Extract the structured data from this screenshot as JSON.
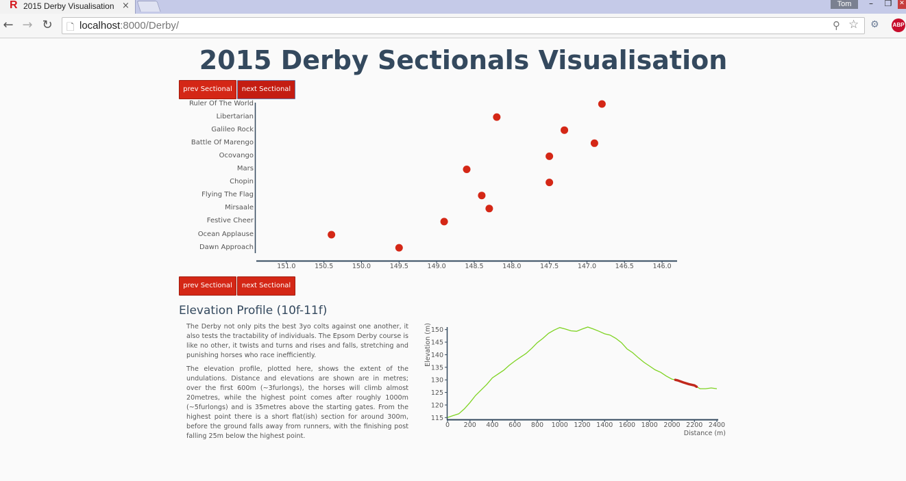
{
  "browser": {
    "tab_title": "2015 Derby Visualisation",
    "tab_favicon": "R",
    "close_glyph": "×",
    "user_name": "Tom",
    "url_host": "localhost",
    "url_path": ":8000/Derby/",
    "icons": {
      "back": "back-arrow-icon",
      "forward": "forward-arrow-icon",
      "reload": "reload-icon",
      "page": "page-icon",
      "search": "search-icon",
      "star": "star-icon",
      "extension": "extension-icon",
      "adblock": "adblock-icon"
    },
    "adblock_label": "ABP",
    "window_buttons": {
      "minimize": "–",
      "maximize": "❐",
      "close": "✕"
    }
  },
  "page": {
    "title": "2015 Derby Sectionals Visualisation",
    "prev_label": "prev Sectional",
    "next_label": "next Sectional"
  },
  "elevation": {
    "heading": "Elevation Profile (10f-11f)",
    "paragraph1": "The Derby not only pits the best 3yo colts against one another, it also tests the tractability of individuals. The Epsom Derby course is like no other, it twists and turns and rises and falls, stretching and punishing horses who race inefficiently.",
    "paragraph2": "The elevation profile, plotted here, shows the extent of the undulations. Distance and elevations are shown are in metres; over the first 600m (~3furlongs), the horses will climb almost 20metres, while the highest point comes after roughly 1000m (~5furlongs) and is 35metres above the starting gates. From the highest point there is a short flat(ish) section for around 300m, before the ground falls away from runners, with the finishing post falling 25m below the highest point."
  },
  "colors": {
    "accent": "#d42716",
    "title": "#34495e",
    "axis": "#34495e",
    "line": "#7ed321",
    "highlight": "#c0281c"
  },
  "chart_data": [
    {
      "type": "scatter",
      "name": "sectional-times",
      "categories": [
        "Ruler Of The World",
        "Libertarian",
        "Galileo Rock",
        "Battle Of Marengo",
        "Ocovango",
        "Mars",
        "Chopin",
        "Flying The Flag",
        "Mirsaale",
        "Festive Cheer",
        "Ocean Applause",
        "Dawn Approach"
      ],
      "values": [
        146.8,
        148.2,
        147.3,
        146.9,
        147.5,
        148.6,
        147.5,
        148.4,
        148.3,
        148.9,
        150.4,
        149.5
      ],
      "xlim": [
        151.4,
        145.8
      ],
      "xticks": [
        "151.0",
        "150.5",
        "150.0",
        "149.5",
        "149.0",
        "148.5",
        "148.0",
        "147.5",
        "147.0",
        "146.5",
        "146.0"
      ],
      "xtick_values": [
        151.0,
        150.5,
        150.0,
        149.5,
        149.0,
        148.5,
        148.0,
        147.5,
        147.0,
        146.5,
        146.0
      ],
      "x_reversed": true
    },
    {
      "type": "line",
      "name": "elevation-profile",
      "xlabel": "Distance (m)",
      "ylabel": "Elevation (m)",
      "xlim": [
        0,
        2400
      ],
      "ylim": [
        114,
        151
      ],
      "xticks": [
        "0",
        "200",
        "400",
        "600",
        "800",
        "1000",
        "1200",
        "1400",
        "1600",
        "1800",
        "2000",
        "2200",
        "2400"
      ],
      "xtick_values": [
        0,
        200,
        400,
        600,
        800,
        1000,
        1200,
        1400,
        1600,
        1800,
        2000,
        2200,
        2400
      ],
      "yticks": [
        "115",
        "120",
        "125",
        "130",
        "135",
        "140",
        "145",
        "150"
      ],
      "ytick_values": [
        115,
        120,
        125,
        130,
        135,
        140,
        145,
        150
      ],
      "x": [
        0,
        50,
        100,
        150,
        200,
        250,
        300,
        350,
        400,
        450,
        500,
        550,
        600,
        650,
        700,
        750,
        800,
        850,
        900,
        950,
        1000,
        1050,
        1100,
        1150,
        1200,
        1250,
        1300,
        1350,
        1400,
        1450,
        1500,
        1550,
        1600,
        1650,
        1700,
        1750,
        1800,
        1850,
        1900,
        1950,
        2000,
        2050,
        2100,
        2150,
        2200,
        2250,
        2300,
        2350,
        2400
      ],
      "y": [
        115,
        115.8,
        116.5,
        118.5,
        121,
        123.8,
        126,
        128.2,
        130.8,
        132.3,
        133.8,
        135.8,
        137.5,
        139,
        140.5,
        142.5,
        144.8,
        146.5,
        148.5,
        149.8,
        150.8,
        150.2,
        149.5,
        149.3,
        150.2,
        151,
        150.2,
        149.3,
        148.3,
        147.8,
        146.5,
        144.8,
        142.3,
        140.8,
        138.8,
        137,
        135.5,
        134,
        133,
        131.5,
        130.3,
        129.8,
        129,
        128.3,
        127.8,
        126.5,
        126.5,
        126.8,
        126.5
      ],
      "highlight": {
        "label": "10f-11f",
        "from": 2030,
        "to": 2220
      }
    }
  ]
}
